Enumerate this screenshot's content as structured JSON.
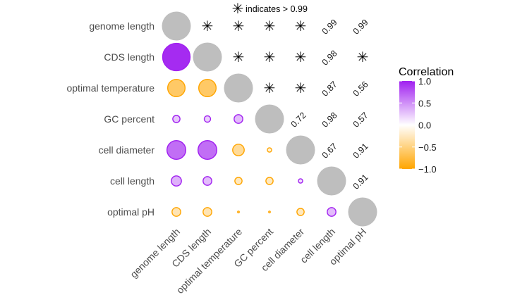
{
  "chart_data": {
    "type": "correlation-matrix",
    "variables": [
      "genome length",
      "CDS length",
      "optimal temperature",
      "GC percent",
      "cell diameter",
      "cell length",
      "optimal pH"
    ],
    "lower_correlations": [
      [
        1,
        null,
        null,
        null,
        null,
        null,
        null
      ],
      [
        0.95,
        1,
        null,
        null,
        null,
        null,
        null
      ],
      [
        -0.6,
        -0.6,
        1,
        null,
        null,
        null,
        null
      ],
      [
        0.25,
        0.22,
        0.3,
        1,
        null,
        null,
        null
      ],
      [
        0.65,
        0.65,
        -0.4,
        -0.15,
        1,
        null,
        null
      ],
      [
        0.35,
        0.3,
        -0.25,
        -0.25,
        0.15,
        1,
        null
      ],
      [
        -0.3,
        -0.3,
        -0.06,
        -0.03,
        -0.25,
        0.3,
        1
      ]
    ],
    "upper_pvalues": [
      [
        null,
        "*",
        "*",
        "*",
        "*",
        "0.99",
        "0.99"
      ],
      [
        null,
        null,
        "*",
        "*",
        "*",
        "0.98",
        "*"
      ],
      [
        null,
        null,
        null,
        "*",
        "*",
        "0.87",
        "0.56"
      ],
      [
        null,
        null,
        null,
        null,
        "0.72",
        "0.98",
        "0.57"
      ],
      [
        null,
        null,
        null,
        null,
        null,
        "0.67",
        "0.91"
      ],
      [
        null,
        null,
        null,
        null,
        null,
        null,
        "0.91"
      ],
      [
        null,
        null,
        null,
        null,
        null,
        null,
        null
      ]
    ],
    "star_symbol": "✳",
    "significance_note": "indicates > 0.99",
    "legend": {
      "title": "Correlation",
      "ticks": [
        "1.0",
        "0.5",
        "0.0",
        "−0.5",
        "−1.0"
      ],
      "tick_values": [
        1.0,
        0.5,
        0.0,
        -0.5,
        -1.0
      ],
      "range": [
        -1,
        1
      ]
    },
    "colors": {
      "positive": "#a020f0",
      "negative": "#ffa500",
      "neutral": "#ffffff",
      "diagonal": "#bebebe",
      "axis_text": "#4d4d4d"
    }
  }
}
